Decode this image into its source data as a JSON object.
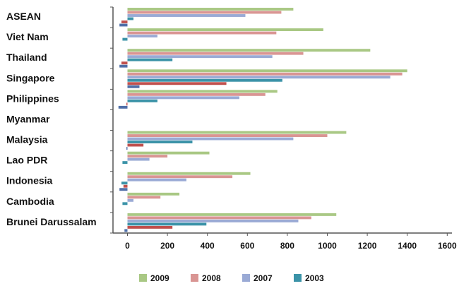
{
  "chart_data": {
    "type": "bar",
    "orientation": "horizontal",
    "title": "",
    "xlabel": "",
    "ylabel": "",
    "xlim": [
      -100,
      1600
    ],
    "x_ticks": [
      0,
      200,
      400,
      600,
      800,
      1000,
      1200,
      1400,
      1600
    ],
    "grid": false,
    "legend_position": "bottom",
    "categories": [
      "ASEAN",
      "Viet Nam",
      "Thailand",
      "Singapore",
      "Philippines",
      "Myanmar",
      "Malaysia",
      "Lao PDR",
      "Indonesia",
      "Cambodia",
      "Brunei Darussalam"
    ],
    "series": [
      {
        "name": "2009",
        "color": "#a9c884",
        "values": [
          830,
          980,
          1215,
          1400,
          750,
          0,
          1095,
          410,
          615,
          260,
          1045
        ]
      },
      {
        "name": "2008",
        "color": "#d99593",
        "values": [
          770,
          745,
          880,
          1375,
          690,
          0,
          1000,
          200,
          525,
          165,
          920
        ]
      },
      {
        "name": "2007",
        "color": "#9aaad5",
        "values": [
          590,
          150,
          725,
          1315,
          560,
          0,
          830,
          110,
          295,
          30,
          855
        ]
      },
      {
        "name": "2003",
        "color": "#3b93a8",
        "values": [
          30,
          -25,
          225,
          775,
          150,
          0,
          325,
          -25,
          -30,
          -25,
          395
        ]
      },
      {
        "name": "",
        "color": "#c0504d",
        "values": [
          -30,
          0,
          -30,
          495,
          -5,
          0,
          80,
          0,
          -20,
          0,
          225
        ]
      },
      {
        "name": "",
        "color": "#4f6fa8",
        "values": [
          -40,
          0,
          -40,
          60,
          -45,
          0,
          -5,
          0,
          -40,
          0,
          -15
        ]
      }
    ]
  }
}
